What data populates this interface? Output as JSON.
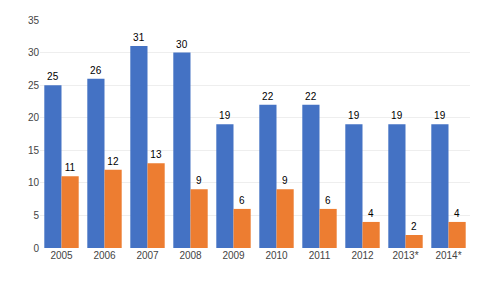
{
  "chart_data": {
    "type": "bar",
    "categories": [
      "2005",
      "2006",
      "2007",
      "2008",
      "2009",
      "2010",
      "2011",
      "2012",
      "2013*",
      "2014*"
    ],
    "series": [
      {
        "color": "#4472C4",
        "values": [
          25,
          26,
          31,
          30,
          19,
          22,
          22,
          19,
          19,
          19
        ]
      },
      {
        "color": "#ED7D31",
        "values": [
          11,
          12,
          13,
          9,
          6,
          9,
          6,
          4,
          2,
          4
        ]
      }
    ],
    "ylim": [
      0,
      35
    ],
    "yticks": [
      0,
      5,
      10,
      15,
      20,
      25,
      30,
      35
    ],
    "grid": true,
    "data_labels": true
  }
}
